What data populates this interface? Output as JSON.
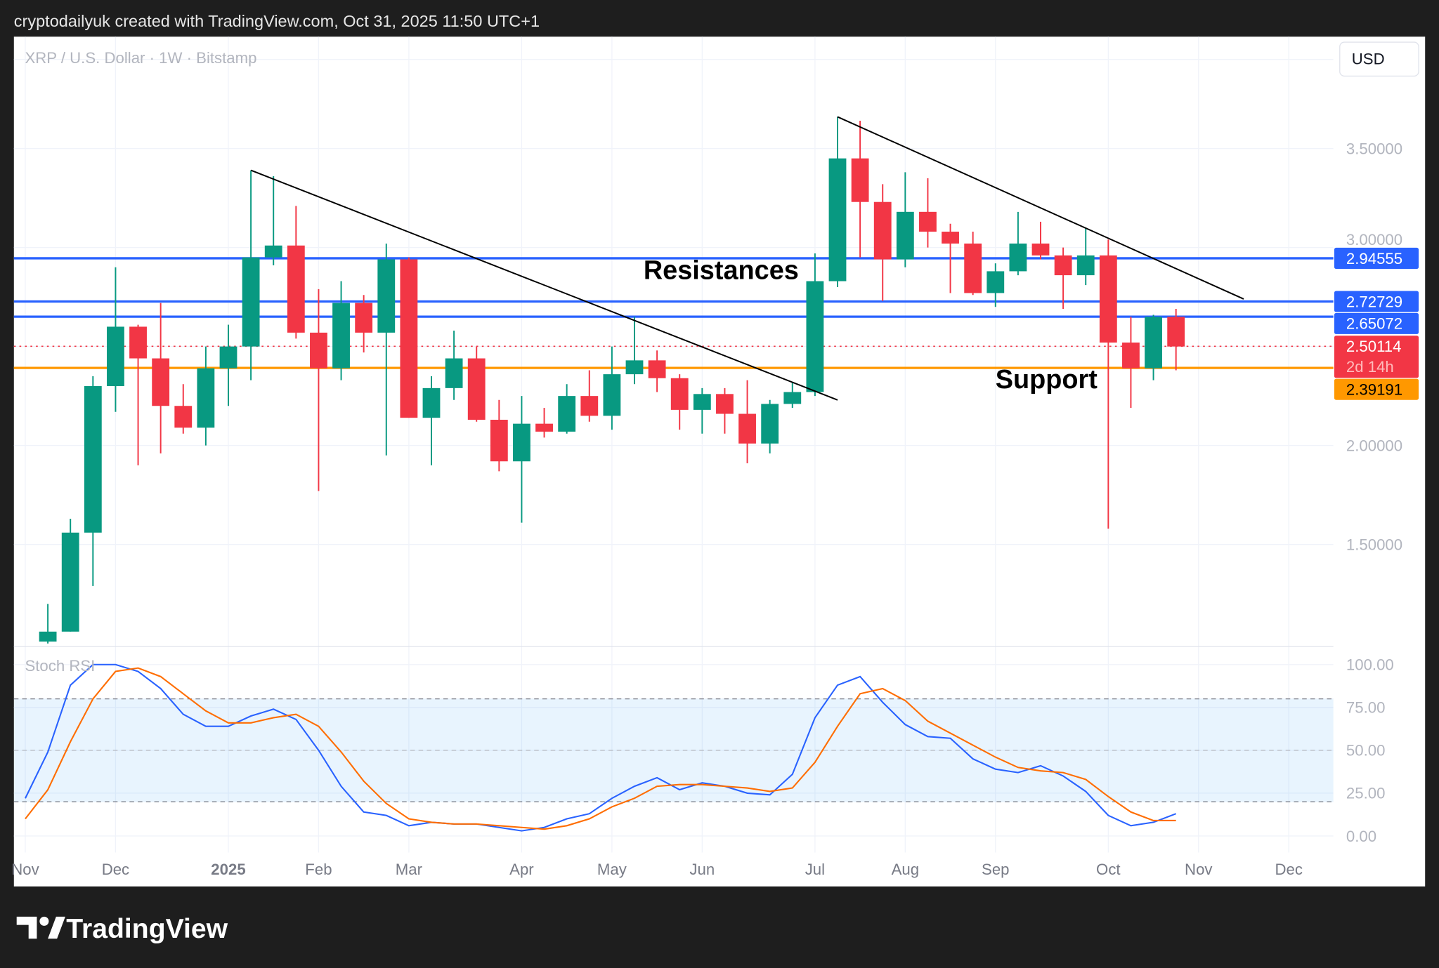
{
  "header": {
    "credit": "cryptodailyuk created with TradingView.com, Oct 31, 2025 11:50 UTC+1"
  },
  "chart_title": "XRP / U.S. Dollar · 1W · Bitstamp",
  "currency_button": "USD",
  "brand": "TradingView",
  "colors": {
    "up": "#089981",
    "down": "#f23645",
    "resistance": "#2962ff",
    "support": "#ff9800",
    "k_line": "#2962ff",
    "d_line": "#ff6d00"
  },
  "chart_data": [
    {
      "type": "candlestick",
      "title": "XRP / U.S. Dollar · 1W · Bitstamp",
      "y_scale": "linear",
      "ylim": [
        0.95,
        3.95
      ],
      "grid": true,
      "y_ticks": [
        "1.50000",
        "2.00000",
        "3.00000",
        "3.50000"
      ],
      "y_tick_values": [
        1.5,
        2.0,
        3.0,
        3.5
      ],
      "x_ticks": [
        {
          "label": "Nov",
          "bar": -1
        },
        {
          "label": "Dec",
          "bar": 3
        },
        {
          "label": "2025",
          "bar": 8,
          "bold": true
        },
        {
          "label": "Feb",
          "bar": 12
        },
        {
          "label": "Mar",
          "bar": 16
        },
        {
          "label": "Apr",
          "bar": 21
        },
        {
          "label": "May",
          "bar": 25
        },
        {
          "label": "Jun",
          "bar": 29
        },
        {
          "label": "Jul",
          "bar": 34
        },
        {
          "label": "Aug",
          "bar": 38
        },
        {
          "label": "Sep",
          "bar": 42
        },
        {
          "label": "Oct",
          "bar": 47
        },
        {
          "label": "Nov",
          "bar": 51
        },
        {
          "label": "Dec",
          "bar": 55
        }
      ],
      "ohlc": [
        [
          1.01,
          1.2,
          1.0,
          1.06
        ],
        [
          1.06,
          1.63,
          1.06,
          1.56
        ],
        [
          1.56,
          2.35,
          1.29,
          2.3
        ],
        [
          2.3,
          2.9,
          2.17,
          2.6
        ],
        [
          2.6,
          2.61,
          1.9,
          2.44
        ],
        [
          2.44,
          2.72,
          1.96,
          2.2
        ],
        [
          2.2,
          2.31,
          2.06,
          2.09
        ],
        [
          2.09,
          2.5,
          2.0,
          2.39
        ],
        [
          2.39,
          2.61,
          2.2,
          2.5
        ],
        [
          2.5,
          3.39,
          2.33,
          2.95
        ],
        [
          2.95,
          3.36,
          2.91,
          3.01
        ],
        [
          3.01,
          3.21,
          2.54,
          2.57
        ],
        [
          2.57,
          2.79,
          1.77,
          2.39
        ],
        [
          2.39,
          2.83,
          2.33,
          2.72
        ],
        [
          2.72,
          2.76,
          2.47,
          2.57
        ],
        [
          2.57,
          3.02,
          1.95,
          2.94
        ],
        [
          2.94,
          2.95,
          2.14,
          2.14
        ],
        [
          2.14,
          2.35,
          1.9,
          2.29
        ],
        [
          2.29,
          2.58,
          2.23,
          2.44
        ],
        [
          2.44,
          2.5,
          2.12,
          2.13
        ],
        [
          2.13,
          2.23,
          1.87,
          1.92
        ],
        [
          1.92,
          2.25,
          1.61,
          2.11
        ],
        [
          2.11,
          2.19,
          2.04,
          2.07
        ],
        [
          2.07,
          2.31,
          2.06,
          2.25
        ],
        [
          2.25,
          2.38,
          2.12,
          2.15
        ],
        [
          2.15,
          2.5,
          2.08,
          2.36
        ],
        [
          2.36,
          2.65,
          2.31,
          2.43
        ],
        [
          2.43,
          2.48,
          2.27,
          2.34
        ],
        [
          2.34,
          2.36,
          2.08,
          2.18
        ],
        [
          2.18,
          2.29,
          2.06,
          2.26
        ],
        [
          2.26,
          2.29,
          2.06,
          2.16
        ],
        [
          2.16,
          2.33,
          1.91,
          2.01
        ],
        [
          2.01,
          2.23,
          1.96,
          2.21
        ],
        [
          2.21,
          2.32,
          2.19,
          2.27
        ],
        [
          2.27,
          2.97,
          2.25,
          2.83
        ],
        [
          2.83,
          3.66,
          2.8,
          3.45
        ],
        [
          3.45,
          3.64,
          2.95,
          3.23
        ],
        [
          3.23,
          3.32,
          2.73,
          2.94
        ],
        [
          2.94,
          3.38,
          2.9,
          3.18
        ],
        [
          3.18,
          3.35,
          3.0,
          3.08
        ],
        [
          3.08,
          3.12,
          2.77,
          3.02
        ],
        [
          3.02,
          3.08,
          2.76,
          2.77
        ],
        [
          2.77,
          2.92,
          2.7,
          2.88
        ],
        [
          2.88,
          3.18,
          2.86,
          3.02
        ],
        [
          3.02,
          3.13,
          2.94,
          2.96
        ],
        [
          2.96,
          3.0,
          2.69,
          2.86
        ],
        [
          2.86,
          3.1,
          2.81,
          2.96
        ],
        [
          2.96,
          3.04,
          1.58,
          2.52
        ],
        [
          2.52,
          2.65,
          2.19,
          2.39
        ],
        [
          2.39,
          2.66,
          2.33,
          2.65
        ],
        [
          2.65,
          2.69,
          2.38,
          2.5
        ]
      ],
      "horizontal_levels": [
        {
          "value": 2.94555,
          "label": "2.94555",
          "kind": "resistance"
        },
        {
          "value": 2.72729,
          "label": "2.72729",
          "kind": "resistance"
        },
        {
          "value": 2.65072,
          "label": "2.65072",
          "kind": "resistance"
        },
        {
          "value": 2.50114,
          "label": "2.50114",
          "sublabel": "2d 14h",
          "kind": "last-price"
        },
        {
          "value": 2.39191,
          "label": "2.39191",
          "kind": "support"
        }
      ],
      "trendlines": [
        {
          "from": {
            "bar": 9,
            "price": 3.39
          },
          "to": {
            "bar": 35,
            "price": 2.23
          }
        },
        {
          "from": {
            "bar": 35,
            "price": 3.66
          },
          "to": {
            "bar": 53,
            "price": 2.74
          }
        }
      ],
      "annotations": [
        {
          "text": "Resistances",
          "bar": 26.4,
          "price": 2.84
        },
        {
          "text": "Support",
          "bar": 42,
          "price": 2.29
        }
      ]
    },
    {
      "type": "line",
      "title": "Stoch RSI",
      "ylim": [
        0,
        100
      ],
      "y_ticks": [
        "0.00",
        "25.00",
        "50.00",
        "75.00",
        "100.00"
      ],
      "y_tick_values": [
        0,
        25,
        50,
        75,
        100
      ],
      "bands": {
        "upper": 80,
        "middle": 50,
        "lower": 20
      },
      "start_bar": -1,
      "series": [
        {
          "values": [
            22,
            49,
            88,
            100,
            100,
            96,
            86,
            71,
            64,
            64,
            70,
            74,
            68,
            50,
            29,
            14,
            12,
            6,
            8,
            7,
            7,
            5,
            3,
            5,
            10,
            13,
            22,
            29,
            34,
            27,
            31,
            29,
            25,
            24,
            36,
            69,
            88,
            93,
            78,
            65,
            58,
            57,
            45,
            39,
            37,
            41,
            35,
            26,
            12,
            6,
            8,
            13
          ]
        },
        {
          "values": [
            10,
            27,
            55,
            80,
            96,
            98,
            93,
            83,
            73,
            66,
            66,
            69,
            71,
            64,
            49,
            32,
            19,
            10,
            8,
            7,
            7,
            6,
            5,
            4,
            6,
            10,
            17,
            22,
            29,
            30,
            30,
            29,
            28,
            26,
            28,
            43,
            64,
            83,
            86,
            79,
            67,
            60,
            53,
            46,
            40,
            38,
            37,
            33,
            23,
            14,
            9,
            9
          ]
        }
      ]
    }
  ]
}
